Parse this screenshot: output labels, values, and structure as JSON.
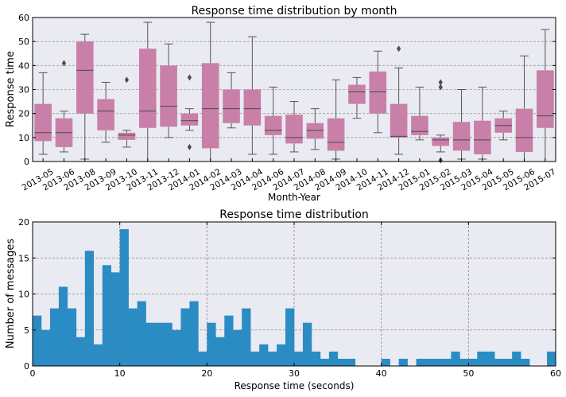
{
  "chart_data": [
    {
      "type": "box",
      "title": "Response time distribution by month",
      "xlabel": "Month-Year",
      "ylabel": "Response time",
      "ylim": [
        0,
        60
      ],
      "yticks": [
        0,
        10,
        20,
        30,
        40,
        50,
        60
      ],
      "box_color": "#c87fa8",
      "median_color": "#4a4a4a",
      "background": "#eaeaf2",
      "categories": [
        "2013-05",
        "2013-06",
        "2013-08",
        "2013-09",
        "2013-10",
        "2013-11",
        "2013-12",
        "2014-01",
        "2014-02",
        "2014-03",
        "2014-04",
        "2014-06",
        "2014-07",
        "2014-08",
        "2014-09",
        "2014-10",
        "2014-11",
        "2014-12",
        "2015-01",
        "2015-02",
        "2015-03",
        "2015-04",
        "2015-05",
        "2015-06",
        "2015-07"
      ],
      "boxes": [
        {
          "whislo": 3,
          "q1": 8.5,
          "med": 12,
          "q3": 24,
          "whishi": 37,
          "fliers": []
        },
        {
          "whislo": 4,
          "q1": 6,
          "med": 12,
          "q3": 18,
          "whishi": 21,
          "fliers": [
            41
          ]
        },
        {
          "whislo": 1,
          "q1": 20,
          "med": 38,
          "q3": 50,
          "whishi": 53,
          "fliers": []
        },
        {
          "whislo": 8,
          "q1": 13,
          "med": 21,
          "q3": 26,
          "whishi": 33,
          "fliers": []
        },
        {
          "whislo": 6,
          "q1": 9,
          "med": 11,
          "q3": 12,
          "whishi": 13,
          "fliers": [
            34
          ]
        },
        {
          "whislo": 0,
          "q1": 14,
          "med": 21,
          "q3": 47,
          "whishi": 58,
          "fliers": []
        },
        {
          "whislo": 10,
          "q1": 14.5,
          "med": 23,
          "q3": 40,
          "whishi": 49,
          "fliers": []
        },
        {
          "whislo": 13,
          "q1": 15,
          "med": 17,
          "q3": 20,
          "whishi": 22,
          "fliers": [
            35,
            6
          ]
        },
        {
          "whislo": 0,
          "q1": 5.5,
          "med": 22,
          "q3": 41,
          "whishi": 58,
          "fliers": []
        },
        {
          "whislo": 14,
          "q1": 16,
          "med": 22,
          "q3": 30,
          "whishi": 37,
          "fliers": []
        },
        {
          "whislo": 3,
          "q1": 15,
          "med": 22,
          "q3": 30,
          "whishi": 52,
          "fliers": []
        },
        {
          "whislo": 3,
          "q1": 11,
          "med": 13,
          "q3": 19,
          "whishi": 31,
          "fliers": []
        },
        {
          "whislo": 4,
          "q1": 7.5,
          "med": 10,
          "q3": 19.5,
          "whishi": 25,
          "fliers": []
        },
        {
          "whislo": 5,
          "q1": 9.5,
          "med": 13,
          "q3": 16,
          "whishi": 22,
          "fliers": []
        },
        {
          "whislo": 1,
          "q1": 4.5,
          "med": 8,
          "q3": 18,
          "whishi": 34,
          "fliers": []
        },
        {
          "whislo": 18,
          "q1": 24,
          "med": 29,
          "q3": 32,
          "whishi": 35,
          "fliers": []
        },
        {
          "whislo": 12,
          "q1": 20,
          "med": 29,
          "q3": 37.5,
          "whishi": 46,
          "fliers": []
        },
        {
          "whislo": 3,
          "q1": 10,
          "med": 10.5,
          "q3": 24,
          "whishi": 39,
          "fliers": [
            47
          ]
        },
        {
          "whislo": 9,
          "q1": 11,
          "med": 12.5,
          "q3": 19,
          "whishi": 31,
          "fliers": []
        },
        {
          "whislo": 4,
          "q1": 6.5,
          "med": 9,
          "q3": 10,
          "whishi": 11,
          "fliers": [
            33,
            31,
            0.5
          ]
        },
        {
          "whislo": 1,
          "q1": 4.5,
          "med": 9,
          "q3": 16.5,
          "whishi": 30,
          "fliers": []
        },
        {
          "whislo": 1,
          "q1": 3,
          "med": 9,
          "q3": 17,
          "whishi": 31,
          "fliers": []
        },
        {
          "whislo": 9,
          "q1": 12,
          "med": 15,
          "q3": 18,
          "whishi": 21,
          "fliers": []
        },
        {
          "whislo": 0,
          "q1": 4,
          "med": 10,
          "q3": 22,
          "whishi": 44,
          "fliers": []
        },
        {
          "whislo": 0,
          "q1": 14,
          "med": 19,
          "q3": 38,
          "whishi": 55,
          "fliers": []
        }
      ]
    },
    {
      "type": "histogram",
      "title": "Response time distribution",
      "xlabel": "Response time (seconds)",
      "ylabel": "Number of messages",
      "xlim": [
        0,
        60
      ],
      "ylim": [
        0,
        20
      ],
      "xticks": [
        0,
        10,
        20,
        30,
        40,
        50,
        60
      ],
      "yticks": [
        0,
        5,
        10,
        15,
        20
      ],
      "bin_width": 1,
      "bar_color": "#2b8cc4",
      "background": "#eaeaf2",
      "counts": [
        7,
        5,
        8,
        11,
        8,
        4,
        16,
        3,
        14,
        13,
        19,
        8,
        9,
        6,
        6,
        6,
        5,
        8,
        9,
        2,
        6,
        4,
        7,
        5,
        8,
        2,
        3,
        2,
        3,
        8,
        2,
        6,
        2,
        1,
        2,
        1,
        1,
        0,
        0,
        0,
        1,
        0,
        1,
        0,
        1,
        1,
        1,
        1,
        2,
        1,
        1,
        2,
        2,
        1,
        1,
        2,
        1,
        0,
        0,
        2
      ]
    }
  ]
}
